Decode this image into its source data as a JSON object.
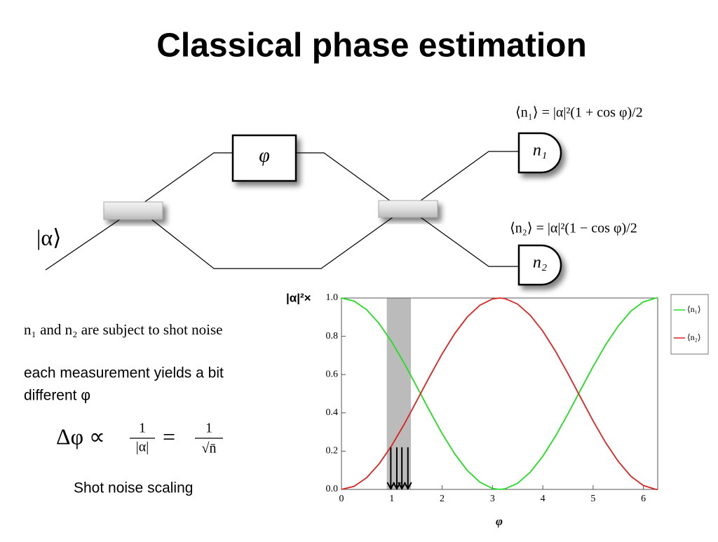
{
  "title": "Classical phase estimation",
  "diagram": {
    "phase_box": "φ",
    "input": "|α⟩",
    "detector1": "n₁",
    "detector2": "n₂",
    "formula1": "⟨n₁⟩ = |α|²(1 + cos φ)/2",
    "formula2": "⟨n₂⟩ = |α|²(1 − cos φ)/2"
  },
  "notes": {
    "shot_noise": "n₁ and n₂ are subject to shot noise",
    "measurement_line1": "each measurement yields a bit",
    "measurement_line2": "different φ",
    "formula": {
      "lhs": "Δφ ∝",
      "frac1_num": "1",
      "frac1_den": "|α|",
      "eq": "=",
      "frac2_num": "1",
      "frac2_den": "√n̄"
    },
    "caption": "Shot noise scaling"
  },
  "chart_data": {
    "type": "line",
    "y_label": "|α|²×",
    "x_label": "φ",
    "x": [
      0,
      0.25,
      0.5,
      0.75,
      1.0,
      1.25,
      1.5,
      1.75,
      2.0,
      2.25,
      2.5,
      2.75,
      3.0,
      3.14,
      3.25,
      3.5,
      3.75,
      4.0,
      4.25,
      4.5,
      4.75,
      5.0,
      5.25,
      5.5,
      5.75,
      6.0,
      6.25,
      6.28
    ],
    "series": [
      {
        "name": "⟨n₁⟩",
        "color": "#22dd22",
        "values": [
          1,
          0.984,
          0.939,
          0.866,
          0.77,
          0.658,
          0.535,
          0.411,
          0.292,
          0.186,
          0.099,
          0.038,
          0.005,
          0,
          0.003,
          0.032,
          0.09,
          0.173,
          0.277,
          0.395,
          0.519,
          0.642,
          0.756,
          0.854,
          0.931,
          0.98,
          1.0,
          1
        ]
      },
      {
        "name": "⟨n₂⟩",
        "color": "#dd2222",
        "values": [
          0,
          0.016,
          0.061,
          0.134,
          0.23,
          0.342,
          0.465,
          0.589,
          0.708,
          0.814,
          0.901,
          0.962,
          0.995,
          1,
          0.997,
          0.968,
          0.91,
          0.827,
          0.723,
          0.605,
          0.481,
          0.358,
          0.244,
          0.146,
          0.069,
          0.02,
          0.0,
          0
        ]
      }
    ],
    "band": [
      0.9,
      1.38
    ],
    "band_color": "#bbbbbb",
    "arrows_x": [
      0.98,
      1.1,
      1.2,
      1.32
    ],
    "arrow_top": 0.22,
    "xlim": [
      0,
      6.2832
    ],
    "ylim": [
      0,
      1
    ],
    "xticks": [
      0,
      1,
      2,
      3,
      4,
      5,
      6
    ],
    "yticks": [
      {
        "value": 0,
        "label": "0.0"
      },
      {
        "value": 0.2,
        "label": "0.2"
      },
      {
        "value": 0.4,
        "label": "0.4"
      },
      {
        "value": 0.6,
        "label": "0.6"
      },
      {
        "value": 0.8,
        "label": "0.8"
      },
      {
        "value": 1,
        "label": "1.0"
      }
    ],
    "legend": "right"
  }
}
